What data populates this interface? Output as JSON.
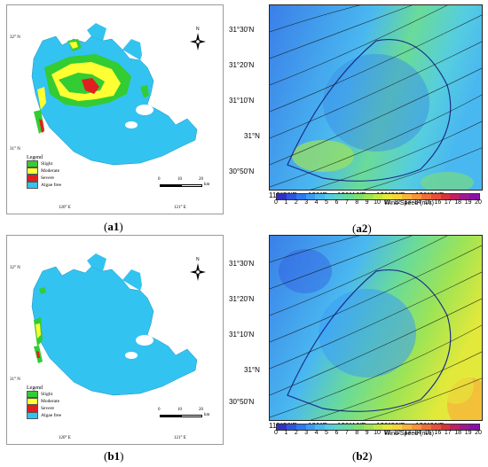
{
  "panels": {
    "a1": {
      "caption_prefix": "(",
      "caption_bold": "a1",
      "caption_suffix": ")",
      "lat_labels": [
        "32° N",
        "31° N"
      ],
      "lon_labels": [
        "120° E",
        "121° E"
      ],
      "legend": {
        "title": "Legend",
        "items": [
          {
            "label": "Slight",
            "color": "#33cc33"
          },
          {
            "label": "Moderate",
            "color": "#ffff33"
          },
          {
            "label": "Severe",
            "color": "#e02020"
          },
          {
            "label": "Algae free",
            "color": "#33c3f0"
          }
        ]
      },
      "scale": {
        "ticks": [
          "0",
          "10",
          "20"
        ],
        "unit": "km"
      },
      "north": "N"
    },
    "a2": {
      "caption_prefix": "(",
      "caption_bold": "a2",
      "caption_suffix": ")",
      "lat_labels": [
        "31°30'N",
        "31°20'N",
        "31°10'N",
        "31°N",
        "30°50'N"
      ],
      "lon_labels": [
        "119°50'E",
        "120°E",
        "120°10'E",
        "120°20'E",
        "120°30'E",
        "120°40'E"
      ],
      "colorbar_title": "Wind Speed  (m/s)",
      "colorbar_ticks": [
        "0",
        "1",
        "2",
        "3",
        "4",
        "5",
        "6",
        "7",
        "8",
        "9",
        "10",
        "11",
        "12",
        "13",
        "14",
        "15",
        "16",
        "17",
        "18",
        "19",
        "20"
      ]
    },
    "b1": {
      "caption_prefix": "(",
      "caption_bold": "b1",
      "caption_suffix": ")",
      "lat_labels": [
        "32° N",
        "31° N"
      ],
      "lon_labels": [
        "120° E",
        "121° E"
      ],
      "legend": {
        "title": "Legend",
        "items": [
          {
            "label": "Slight",
            "color": "#33cc33"
          },
          {
            "label": "Moderate",
            "color": "#ffff33"
          },
          {
            "label": "Severe",
            "color": "#e02020"
          },
          {
            "label": "Algae free",
            "color": "#33c3f0"
          }
        ]
      },
      "scale": {
        "ticks": [
          "0",
          "10",
          "20"
        ],
        "unit": "km"
      },
      "north": "N"
    },
    "b2": {
      "caption_prefix": "(",
      "caption_bold": "b2",
      "caption_suffix": ")",
      "lat_labels": [
        "31°30'N",
        "31°20'N",
        "31°10'N",
        "31°N",
        "30°50'N"
      ],
      "lon_labels": [
        "119°50'E",
        "120°E",
        "120°10'E",
        "120°20'E",
        "120°30'E",
        "120°40'E"
      ],
      "colorbar_title": "Wind Speed  (m/s)",
      "colorbar_ticks": [
        "0",
        "1",
        "2",
        "3",
        "4",
        "5",
        "6",
        "7",
        "8",
        "9",
        "10",
        "11",
        "12",
        "13",
        "14",
        "15",
        "16",
        "17",
        "18",
        "19",
        "20"
      ]
    }
  },
  "colors": {
    "lake": "#33c3f0",
    "slight": "#33cc33",
    "moderate": "#ffff33",
    "severe": "#e02020",
    "colorbar": [
      "#3030c8",
      "#2f55e0",
      "#2f78f0",
      "#3a9cf5",
      "#4ab8f0",
      "#55cde0",
      "#5ed6c0",
      "#6adb98",
      "#7ee070",
      "#9ee455",
      "#c2e845",
      "#e2e93a",
      "#f5d53a",
      "#f8b53a",
      "#f8953a",
      "#f0703a",
      "#e8503a",
      "#d8333a",
      "#c02060",
      "#a01890",
      "#8a10a8"
    ]
  }
}
